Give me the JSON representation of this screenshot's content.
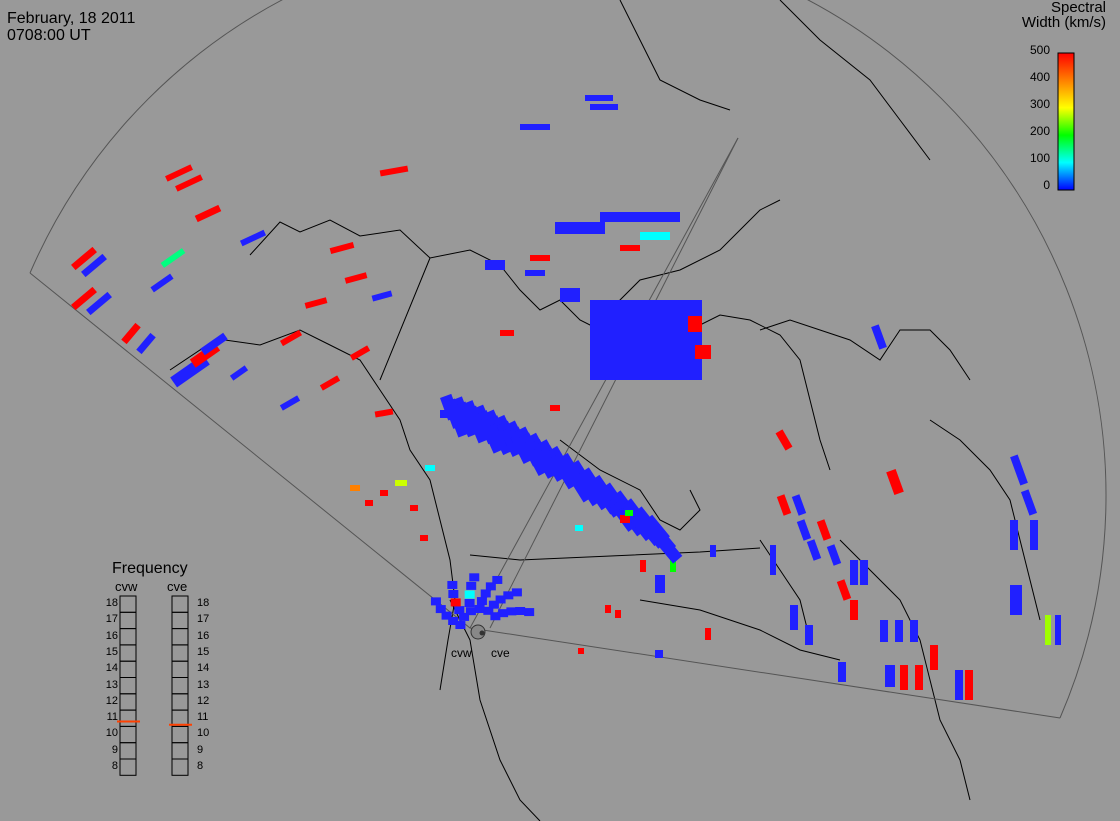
{
  "header": {
    "date": "February, 18 2011",
    "time": "0708:00 UT"
  },
  "color_scale": {
    "title_line1": "Spectral",
    "title_line2": "Width (km/s)",
    "ticks": [
      "500",
      "400",
      "300",
      "200",
      "100",
      "0"
    ],
    "colors": [
      "#ff0000",
      "#ff8000",
      "#ffff00",
      "#00ff00",
      "#00ffff",
      "#0000ff"
    ]
  },
  "frequency_panel": {
    "title": "Frequency",
    "radars": [
      "cvw",
      "cve"
    ],
    "scale": [
      "18",
      "17",
      "16",
      "15",
      "14",
      "13",
      "12",
      "11",
      "10",
      "9",
      "8"
    ],
    "selected_mhz": {
      "cvw": 10.8,
      "cve": 10.6
    },
    "marker_color": "#ff4000"
  },
  "sites": {
    "west": "cvw",
    "east": "cve"
  },
  "colors": {
    "background": "#999999",
    "outline": "#000000",
    "fov": "#555555",
    "low_width": "#2020ff",
    "high_width": "#ff0000"
  }
}
